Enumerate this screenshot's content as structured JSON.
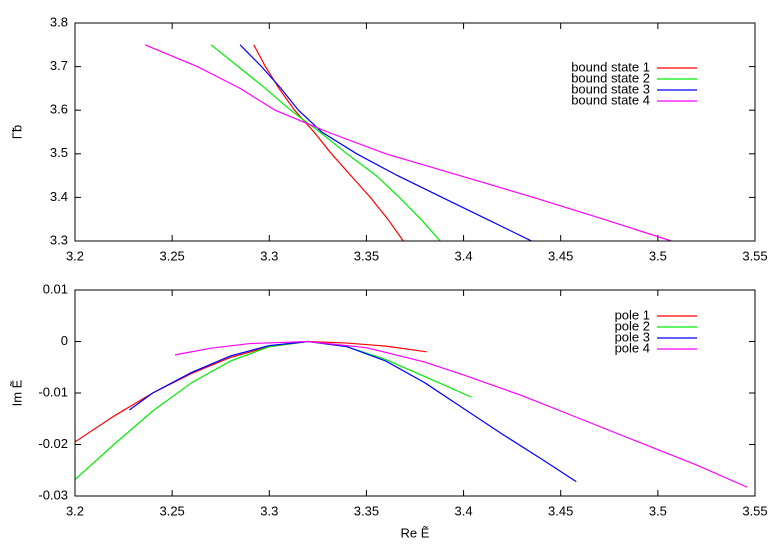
{
  "chart_data": [
    {
      "type": "line",
      "ylabel": "Γ̃b",
      "xlim": [
        3.2,
        3.55
      ],
      "ylim": [
        3.3,
        3.8
      ],
      "xticks": [
        3.2,
        3.25,
        3.3,
        3.35,
        3.4,
        3.45,
        3.5,
        3.55
      ],
      "yticks": [
        3.3,
        3.4,
        3.5,
        3.6,
        3.7,
        3.8
      ],
      "legend": "top-right",
      "series": [
        {
          "name": "bound state 1",
          "color": "#ff0000",
          "x": [
            3.292,
            3.298,
            3.305,
            3.313,
            3.323,
            3.332,
            3.342,
            3.352,
            3.361,
            3.369
          ],
          "values": [
            3.75,
            3.7,
            3.65,
            3.6,
            3.55,
            3.5,
            3.45,
            3.4,
            3.35,
            3.3
          ]
        },
        {
          "name": "bound state 2",
          "color": "#00ee00",
          "x": [
            3.27,
            3.284,
            3.298,
            3.311,
            3.326,
            3.34,
            3.355,
            3.367,
            3.378,
            3.388
          ],
          "values": [
            3.75,
            3.7,
            3.65,
            3.6,
            3.55,
            3.5,
            3.45,
            3.4,
            3.35,
            3.3
          ]
        },
        {
          "name": "bound state 3",
          "color": "#0000ff",
          "x": [
            3.285,
            3.296,
            3.306,
            3.315,
            3.327,
            3.345,
            3.366,
            3.389,
            3.412,
            3.435
          ],
          "values": [
            3.75,
            3.7,
            3.65,
            3.6,
            3.55,
            3.5,
            3.45,
            3.4,
            3.35,
            3.3
          ]
        },
        {
          "name": "bound state 4",
          "color": "#ff00ff",
          "x": [
            3.236,
            3.263,
            3.285,
            3.303,
            3.33,
            3.36,
            3.398,
            3.436,
            3.472,
            3.507
          ],
          "values": [
            3.75,
            3.7,
            3.65,
            3.6,
            3.55,
            3.5,
            3.45,
            3.4,
            3.35,
            3.3
          ]
        }
      ]
    },
    {
      "type": "line",
      "xlabel": "Re Ẽ",
      "ylabel": "Im Ẽ",
      "xlim": [
        3.2,
        3.55
      ],
      "ylim": [
        -0.03,
        0.01
      ],
      "xticks": [
        3.2,
        3.25,
        3.3,
        3.35,
        3.4,
        3.45,
        3.5,
        3.55
      ],
      "yticks": [
        -0.03,
        -0.02,
        -0.01,
        0,
        0.01
      ],
      "legend": "top-right",
      "series": [
        {
          "name": "pole 1",
          "color": "#ff0000",
          "x": [
            3.2,
            3.22,
            3.24,
            3.26,
            3.28,
            3.3,
            3.32,
            3.34,
            3.36,
            3.381
          ],
          "values": [
            -0.0195,
            -0.0145,
            -0.01,
            -0.0062,
            -0.0031,
            -0.001,
            0,
            -0.0003,
            -0.0009,
            -0.002
          ]
        },
        {
          "name": "pole 2",
          "color": "#00ee00",
          "x": [
            3.2,
            3.22,
            3.24,
            3.26,
            3.28,
            3.3,
            3.32,
            3.34,
            3.36,
            3.38,
            3.404
          ],
          "values": [
            -0.0268,
            -0.02,
            -0.0135,
            -0.008,
            -0.0038,
            -0.001,
            0,
            -0.001,
            -0.0035,
            -0.0068,
            -0.0108
          ]
        },
        {
          "name": "pole 3",
          "color": "#0000ff",
          "x": [
            3.228,
            3.24,
            3.26,
            3.28,
            3.3,
            3.32,
            3.34,
            3.36,
            3.38,
            3.4,
            3.42,
            3.44,
            3.458
          ],
          "values": [
            -0.0133,
            -0.01,
            -0.006,
            -0.0028,
            -0.0008,
            0,
            -0.001,
            -0.0038,
            -0.008,
            -0.013,
            -0.018,
            -0.0228,
            -0.0272
          ]
        },
        {
          "name": "pole 4",
          "color": "#ff00ff",
          "x": [
            3.2515,
            3.27,
            3.29,
            3.32,
            3.35,
            3.38,
            3.4,
            3.43,
            3.46,
            3.49,
            3.52,
            3.546
          ],
          "values": [
            -0.0026,
            -0.0013,
            -0.0004,
            0,
            -0.0012,
            -0.004,
            -0.0065,
            -0.0105,
            -0.015,
            -0.0195,
            -0.024,
            -0.0283
          ]
        }
      ]
    }
  ]
}
